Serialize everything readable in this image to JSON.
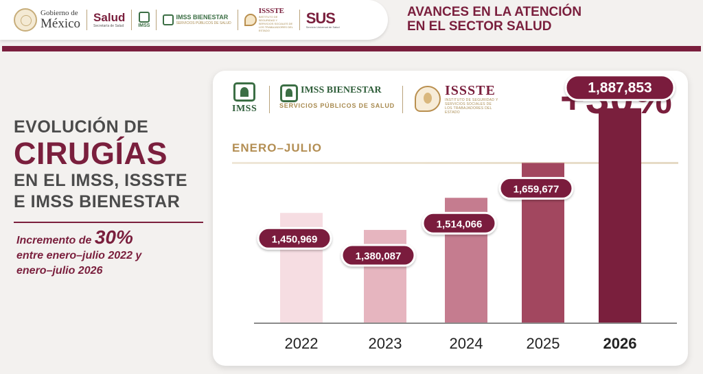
{
  "header": {
    "gobierno_line1": "Gobierno de",
    "gobierno_line2": "México",
    "salud": "Salud",
    "salud_sub": "Secretaría de Salud",
    "imss": "IMSS",
    "imss_bienestar": "IMSS BIENESTAR",
    "imss_bienestar_sub": "SERVICIOS PÚBLICOS DE SALUD",
    "issste": "ISSSTE",
    "issste_sub": "INSTITUTO DE SEGURIDAD Y SERVICIOS SOCIALES DE LOS TRABAJADORES DEL ESTADO",
    "sus": "SUS",
    "sus_sub": "Servicio Universal de Salud",
    "title_line1": "AVANCES EN LA ATENCIÓN",
    "title_line2": "EN EL SECTOR SALUD"
  },
  "left": {
    "line1": "EVOLUCIÓN DE",
    "line2": "CIRUGÍAS",
    "line3": "EN EL IMSS, ISSSTE",
    "line4": "E IMSS BIENESTAR",
    "inc_prefix": "Incremento de ",
    "inc_pct": "30%",
    "inc_line2": "entre enero–julio 2022 y",
    "inc_line3": "enero–julio 2026"
  },
  "card": {
    "imss": "IMSS",
    "imss_bienestar": "IMSS BIENESTAR",
    "imss_bienestar_sub": "SERVICIOS PÚBLICOS DE SALUD",
    "issste": "ISSSTE",
    "issste_sub": "INSTITUTO DE SEGURIDAD Y SERVICIOS SOCIALES DE LOS TRABAJADORES DEL ESTADO",
    "growth": "+30%",
    "period": "ENERO–JULIO"
  },
  "colors": {
    "brand": "#7a1f3d",
    "gold": "#b38e53",
    "imss_green": "#3b6e44"
  },
  "chart_data": {
    "type": "bar",
    "title": "",
    "xlabel": "",
    "ylabel": "",
    "ylim": [
      0,
      2000000
    ],
    "grid": false,
    "categories": [
      "2022",
      "2023",
      "2024",
      "2025",
      "2026"
    ],
    "values": [
      1450969,
      1380087,
      1514066,
      1659677,
      1887853
    ],
    "data_labels": [
      "1,450,969",
      "1,380,087",
      "1,514,066",
      "1,659,677",
      "1,887,853"
    ],
    "bar_colors": [
      "#f6dde2",
      "#e6b5bf",
      "#c57c8f",
      "#a2475f",
      "#7a1f3d"
    ],
    "highlight_category": "2026"
  }
}
